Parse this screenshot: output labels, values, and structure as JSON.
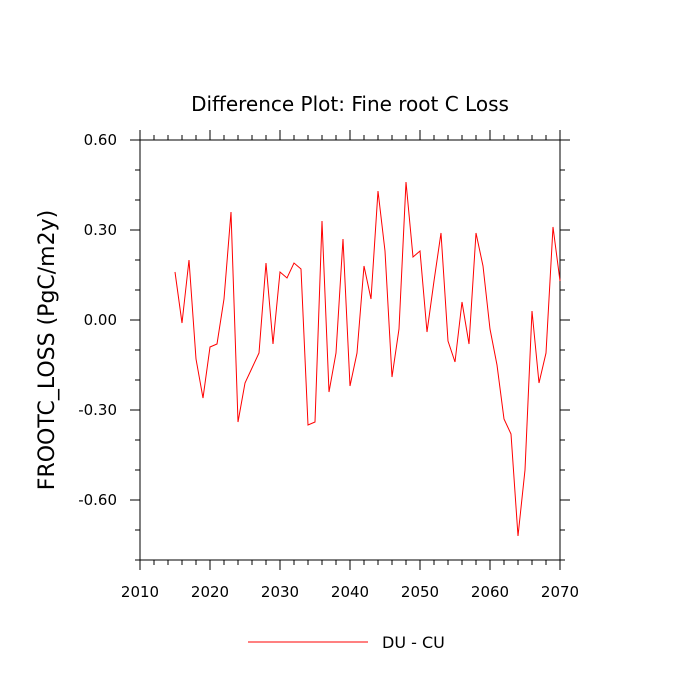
{
  "chart_data": {
    "type": "line",
    "title": "Difference Plot: Fine root C Loss",
    "xlabel": "",
    "ylabel": "FROOTC_LOSS  (PgC/m2y)",
    "xlim": [
      2010,
      2070
    ],
    "ylim": [
      -0.8,
      0.6
    ],
    "xticks": [
      2010,
      2020,
      2030,
      2040,
      2050,
      2060,
      2070
    ],
    "xtick_labels": [
      "2010",
      "2020",
      "2030",
      "2040",
      "2050",
      "2060",
      "2070"
    ],
    "yticks": [
      0.6,
      0.3,
      0.0,
      -0.3,
      -0.6
    ],
    "ytick_labels": [
      "0.60",
      "0.30",
      "0.00",
      "-0.30",
      "-0.60"
    ],
    "x_minor_step": 2,
    "y_minor_step": 0.1,
    "grid": false,
    "legend_position": "bottom-center",
    "series": [
      {
        "name": "DU - CU",
        "color": "#ff0000",
        "x": [
          2015,
          2016,
          2017,
          2018,
          2019,
          2020,
          2021,
          2022,
          2023,
          2024,
          2025,
          2026,
          2027,
          2028,
          2029,
          2030,
          2031,
          2032,
          2033,
          2034,
          2035,
          2036,
          2037,
          2038,
          2039,
          2040,
          2041,
          2042,
          2043,
          2044,
          2045,
          2046,
          2047,
          2048,
          2049,
          2050,
          2051,
          2052,
          2053,
          2054,
          2055,
          2056,
          2057,
          2058,
          2059,
          2060,
          2061,
          2062,
          2063,
          2064,
          2065,
          2066,
          2067,
          2068,
          2069,
          2070
        ],
        "values": [
          0.16,
          -0.01,
          0.2,
          -0.13,
          -0.26,
          -0.09,
          -0.08,
          0.07,
          0.36,
          -0.34,
          -0.21,
          -0.16,
          -0.11,
          0.19,
          -0.08,
          0.16,
          0.14,
          0.19,
          0.17,
          -0.35,
          -0.34,
          0.33,
          -0.24,
          -0.11,
          0.27,
          -0.22,
          -0.11,
          0.18,
          0.07,
          0.43,
          0.23,
          -0.19,
          -0.03,
          0.46,
          0.21,
          0.23,
          -0.04,
          0.13,
          0.29,
          -0.07,
          -0.14,
          0.06,
          -0.08,
          0.29,
          0.18,
          -0.03,
          -0.15,
          -0.33,
          -0.38,
          -0.72,
          -0.5,
          0.03,
          -0.21,
          -0.11,
          0.31,
          0.13
        ]
      }
    ]
  }
}
